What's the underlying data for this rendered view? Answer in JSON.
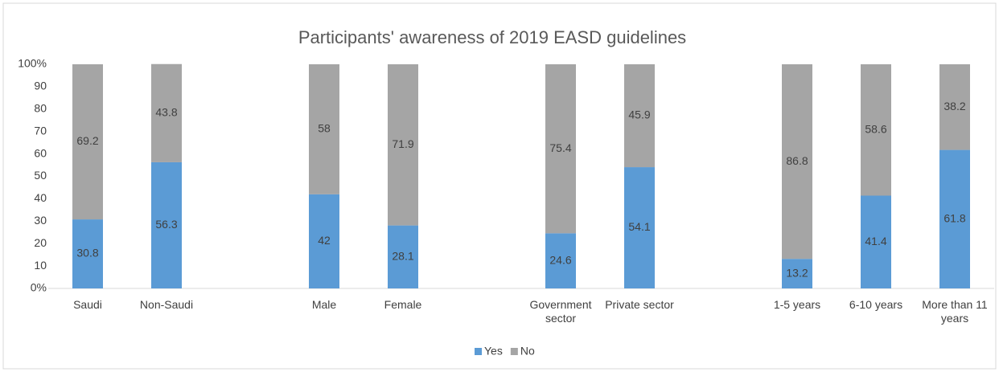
{
  "chart_data": {
    "type": "stacked_bar",
    "title": "Participants' awareness of 2019 EASD guidelines",
    "categories": [
      "Saudi",
      "Non-Saudi",
      null,
      "Male",
      "Female",
      null,
      "Government sector",
      "Private sector",
      null,
      "1-5 years",
      "6-10 years",
      "More than 11 years"
    ],
    "series": [
      {
        "name": "Yes",
        "color": "#5b9bd5",
        "values": [
          30.8,
          56.3,
          null,
          42,
          28.1,
          null,
          24.6,
          54.1,
          null,
          13.2,
          41.4,
          61.8
        ]
      },
      {
        "name": "No",
        "color": "#a5a5a5",
        "values": [
          69.2,
          43.8,
          null,
          58,
          71.9,
          null,
          75.4,
          45.9,
          null,
          86.8,
          58.6,
          38.2
        ]
      }
    ],
    "ylim": [
      0,
      100
    ],
    "yticks": [
      {
        "value": 0,
        "label": "0%"
      },
      10,
      20,
      30,
      40,
      50,
      60,
      70,
      80,
      90,
      {
        "value": 100,
        "label": "100%"
      }
    ],
    "grid": false,
    "legend": "bottom"
  }
}
